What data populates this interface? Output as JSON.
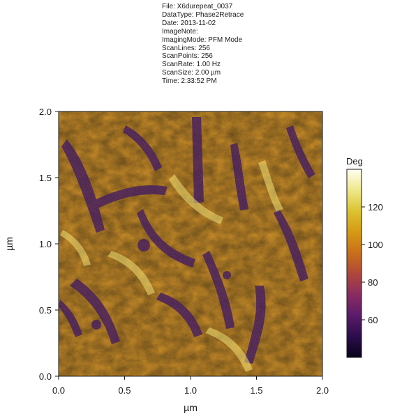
{
  "metadata": [
    {
      "key": "File",
      "value": "X6durepeat_0037"
    },
    {
      "key": "DataType",
      "value": "Phase2Retrace"
    },
    {
      "key": "Date",
      "value": "2013-11-02"
    },
    {
      "key": "ImageNote",
      "value": ""
    },
    {
      "key": "ImagingMode",
      "value": "PFM Mode"
    },
    {
      "key": "ScanLines",
      "value": "256"
    },
    {
      "key": "ScanPoints",
      "value": "256"
    },
    {
      "key": "ScanRate",
      "value": "1.00 Hz"
    },
    {
      "key": "ScanSize",
      "value": "2.00 µm"
    },
    {
      "key": "Time",
      "value": "2:33:52 PM"
    }
  ],
  "chart_data": {
    "type": "heatmap",
    "description": "PFM phase image (Phase2Retrace)",
    "x_axis": {
      "label": "µm",
      "range": [
        0.0,
        2.0
      ],
      "ticks": [
        "0.0",
        "0.5",
        "1.0",
        "1.5",
        "2.0"
      ]
    },
    "y_axis": {
      "label": "µm",
      "range": [
        0.0,
        2.0
      ],
      "ticks": [
        "0.0",
        "0.5",
        "1.0",
        "1.5",
        "2.0"
      ]
    },
    "colorbar": {
      "title": "Deg",
      "range": [
        40,
        140
      ],
      "ticks": [
        "60",
        "80",
        "100",
        "120"
      ],
      "tick_values": [
        60,
        80,
        100,
        120
      ],
      "colormap": [
        "#07021a",
        "#2c0d4c",
        "#5a1b6a",
        "#8a2b62",
        "#b0473a",
        "#c96f1a",
        "#d59a14",
        "#dcc330",
        "#efe88a",
        "#fffff2"
      ]
    },
    "grid": false
  },
  "colors": {
    "frame": "#1a1a1a",
    "background": "#ffffff"
  }
}
